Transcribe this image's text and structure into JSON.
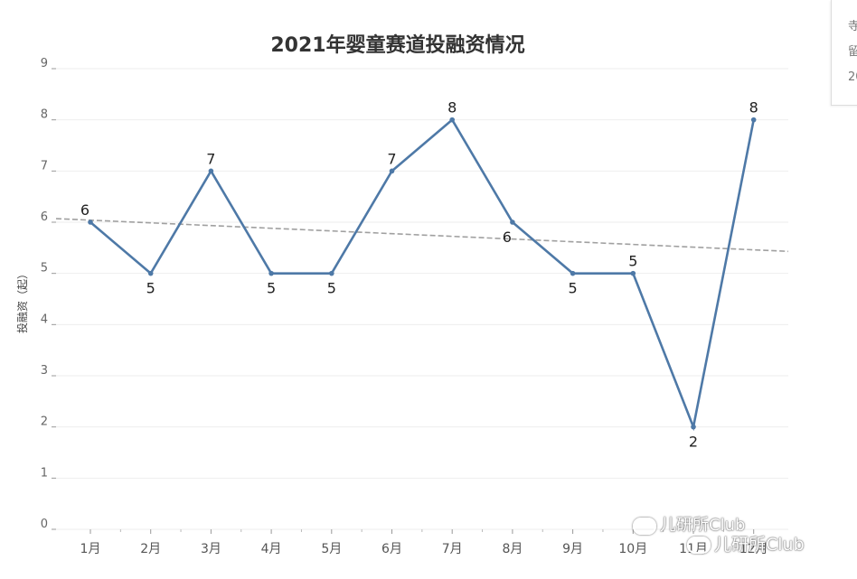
{
  "side_panel": {
    "lines": [
      "寺",
      "留",
      "20"
    ]
  },
  "watermark": {
    "text": "儿研所Club"
  },
  "chart_data": {
    "type": "line",
    "title": "2021年婴童赛道投融资情况",
    "xlabel": "",
    "ylabel": "投融资（起）",
    "categories": [
      "1月",
      "2月",
      "3月",
      "4月",
      "5月",
      "6月",
      "7月",
      "8月",
      "9月",
      "10月",
      "11月",
      "12月"
    ],
    "values": [
      6,
      5,
      7,
      5,
      5,
      7,
      8,
      6,
      5,
      5,
      2,
      8
    ],
    "data_labels": [
      "6",
      "5",
      "7",
      "5",
      "5",
      "7",
      "8",
      "6",
      "5",
      "5",
      "2",
      "8"
    ],
    "label_positions": [
      "above",
      "below",
      "above",
      "below",
      "below",
      "above",
      "above",
      "below",
      "below",
      "above",
      "below",
      "above"
    ],
    "ylim": [
      0,
      9
    ],
    "yticks": [
      "0",
      "1",
      "2",
      "3",
      "4",
      "5",
      "6",
      "7",
      "8",
      "9"
    ],
    "trend_line": {
      "style": "dashed",
      "start_value": 6.07,
      "end_value": 5.43
    },
    "grid": true,
    "legend": "none",
    "colors": {
      "line": "#4e79a7",
      "trend": "#a0a0a0",
      "grid": "#eeeeee",
      "title": "#333333",
      "axis_text": "#666666"
    }
  }
}
